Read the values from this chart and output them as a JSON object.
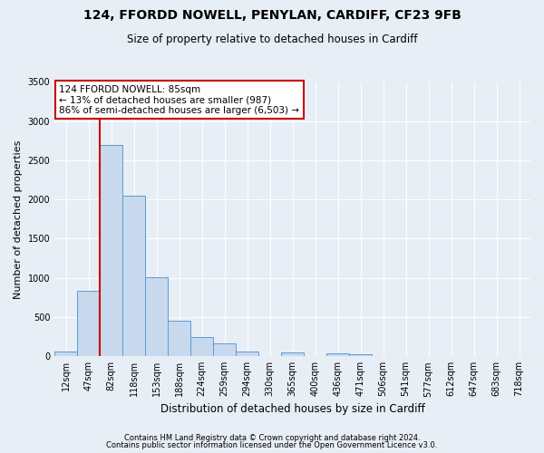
{
  "title_line1": "124, FFORDD NOWELL, PENYLAN, CARDIFF, CF23 9FB",
  "title_line2": "Size of property relative to detached houses in Cardiff",
  "xlabel": "Distribution of detached houses by size in Cardiff",
  "ylabel": "Number of detached properties",
  "footnote1": "Contains HM Land Registry data © Crown copyright and database right 2024.",
  "footnote2": "Contains public sector information licensed under the Open Government Licence v3.0.",
  "bar_labels": [
    "12sqm",
    "47sqm",
    "82sqm",
    "118sqm",
    "153sqm",
    "188sqm",
    "224sqm",
    "259sqm",
    "294sqm",
    "330sqm",
    "365sqm",
    "400sqm",
    "436sqm",
    "471sqm",
    "506sqm",
    "541sqm",
    "577sqm",
    "612sqm",
    "647sqm",
    "683sqm",
    "718sqm"
  ],
  "bar_values": [
    55,
    840,
    2700,
    2050,
    1010,
    455,
    250,
    160,
    55,
    0,
    50,
    0,
    35,
    25,
    0,
    0,
    0,
    0,
    0,
    0,
    0
  ],
  "bar_color": "#c8d9ed",
  "bar_edge_color": "#5b9bd5",
  "vline_x_index": 2,
  "vline_color": "#cc0000",
  "ylim": [
    0,
    3500
  ],
  "yticks": [
    0,
    500,
    1000,
    1500,
    2000,
    2500,
    3000,
    3500
  ],
  "annotation_text": "124 FFORDD NOWELL: 85sqm\n← 13% of detached houses are smaller (987)\n86% of semi-detached houses are larger (6,503) →",
  "annotation_box_color": "#ffffff",
  "annotation_box_edge": "#cc0000",
  "bg_color": "#e8eef5",
  "plot_bg_color": "#e8eef5",
  "grid_color": "#ffffff",
  "title1_fontsize": 10,
  "title2_fontsize": 8.5,
  "ylabel_fontsize": 8,
  "xlabel_fontsize": 8.5,
  "tick_fontsize": 7,
  "annot_fontsize": 7.5,
  "footnote_fontsize": 6
}
